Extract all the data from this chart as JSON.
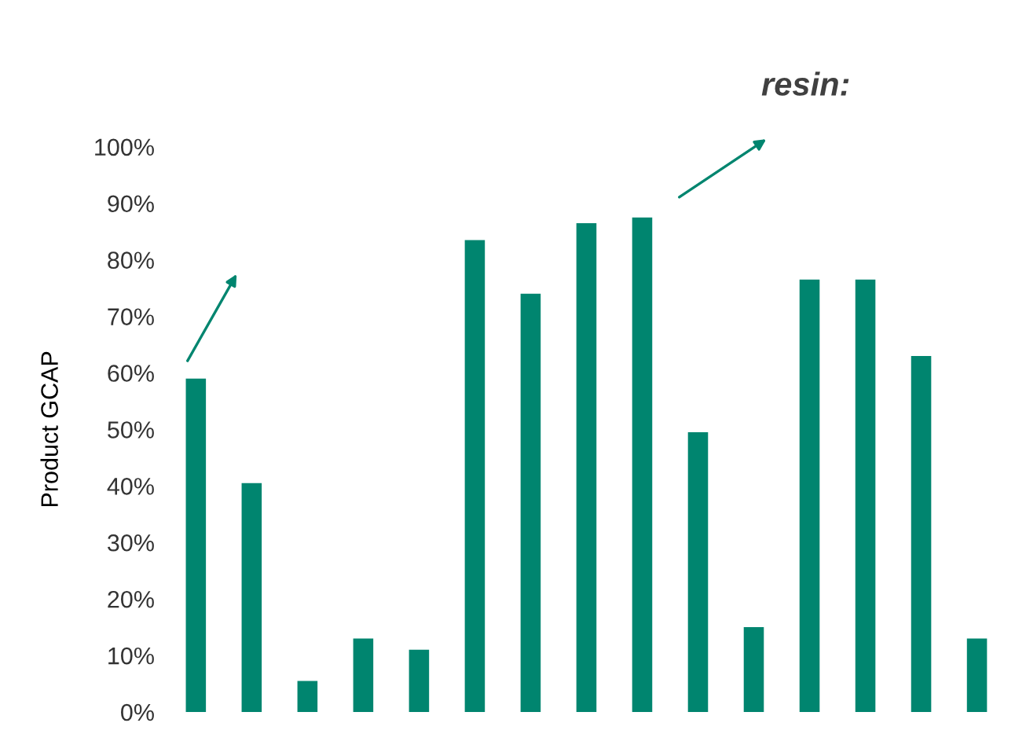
{
  "chart_data": {
    "type": "bar",
    "ylabel": "Product GCAP",
    "categories": [
      null,
      null,
      null,
      null,
      null,
      null,
      null,
      null,
      null,
      null,
      null,
      null,
      null,
      null,
      null
    ],
    "values": [
      59,
      40.5,
      5.5,
      13,
      11,
      83.5,
      74,
      86.5,
      87.5,
      49.5,
      15,
      76.5,
      76.5,
      63,
      13
    ],
    "color": "#00856f",
    "ylim": [
      0,
      100
    ],
    "yticks": [
      {
        "value": 0,
        "label": "0%"
      },
      {
        "value": 10,
        "label": "10%"
      },
      {
        "value": 20,
        "label": "20%"
      },
      {
        "value": 30,
        "label": "30%"
      },
      {
        "value": 40,
        "label": "40%"
      },
      {
        "value": 50,
        "label": "50%"
      },
      {
        "value": 60,
        "label": "60%"
      },
      {
        "value": 70,
        "label": "70%"
      },
      {
        "value": 80,
        "label": "80%"
      },
      {
        "value": 90,
        "label": "90%"
      },
      {
        "value": 100,
        "label": "100%"
      }
    ],
    "annotations": [
      "resin:"
    ],
    "grid": false
  }
}
